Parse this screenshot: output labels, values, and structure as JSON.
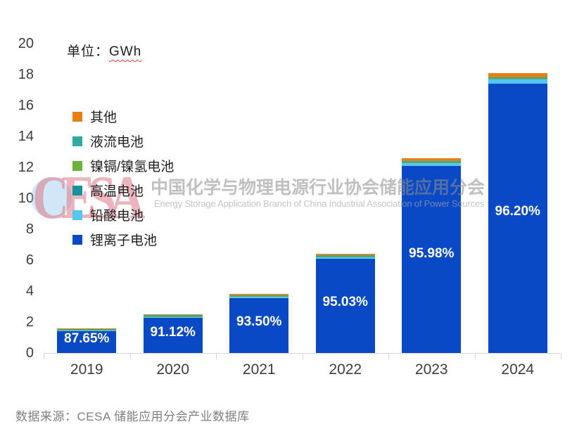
{
  "unit_label": {
    "prefix": "单位：",
    "value": "GWh"
  },
  "source": "数据来源：CESA 储能应用分会产业数据库",
  "watermark": {
    "logo": "CESA",
    "cn": "中国化学与物理电源行业协会储能应用分会",
    "en": "Energy Storage Application Branch of China Industrial Association of Power Sources"
  },
  "colors": {
    "axis_line": "#d9d9d9",
    "tick_label": "#3d3d3d",
    "bar_label_text": "#ffffff",
    "watermark_pink": "rgba(220,118,134,0.55)",
    "watermark_gray": "rgba(140,140,140,0.55)"
  },
  "chart_data": {
    "type": "bar",
    "stacked": true,
    "title": "",
    "unit": "GWh",
    "xlabel": "",
    "ylabel": "GWh",
    "ylim": [
      0,
      20
    ],
    "ytick_step": 2,
    "grid": false,
    "legend_position": "upper-left-vertical",
    "categories": [
      "2019",
      "2020",
      "2021",
      "2022",
      "2023",
      "2024"
    ],
    "series": [
      {
        "key": "li-ion",
        "name": "锂离子电池",
        "color": "#0a49c5",
        "values": [
          1.4,
          2.28,
          3.55,
          6.08,
          12.09,
          17.41
        ]
      },
      {
        "key": "lead-acid",
        "name": "铅酸电池",
        "color": "#55c7f2",
        "values": [
          0.07,
          0.09,
          0.1,
          0.13,
          0.2,
          0.3
        ]
      },
      {
        "key": "high-temp",
        "name": "高温电池",
        "color": "#16929c",
        "values": [
          0.01,
          0.01,
          0.01,
          0.012,
          0.012,
          0.012
        ]
      },
      {
        "key": "nicd-nimh",
        "name": "镍镉/镍氢电池",
        "color": "#6ab339",
        "values": [
          0.005,
          0.005,
          0.005,
          0.006,
          0.006,
          0.006
        ]
      },
      {
        "key": "flow",
        "name": "液流电池",
        "color": "#2fa9a2",
        "values": [
          0.05,
          0.05,
          0.06,
          0.07,
          0.09,
          0.1
        ]
      },
      {
        "key": "other",
        "name": "其他",
        "color": "#e87f14",
        "values": [
          0.065,
          0.065,
          0.075,
          0.102,
          0.202,
          0.272
        ]
      }
    ],
    "totals_estimated": [
      1.6,
      2.5,
      3.8,
      6.4,
      12.6,
      18.1
    ],
    "bar_labels": [
      "87.65%",
      "91.12%",
      "93.50%",
      "95.03%",
      "95.98%",
      "96.20%"
    ],
    "bar_labels_meaning": "锂离子电池占比",
    "legend_order_top_to_bottom": [
      "其他",
      "液流电池",
      "镍镉/镍氢电池",
      "高温电池",
      "铅酸电池",
      "锂离子电池"
    ]
  }
}
